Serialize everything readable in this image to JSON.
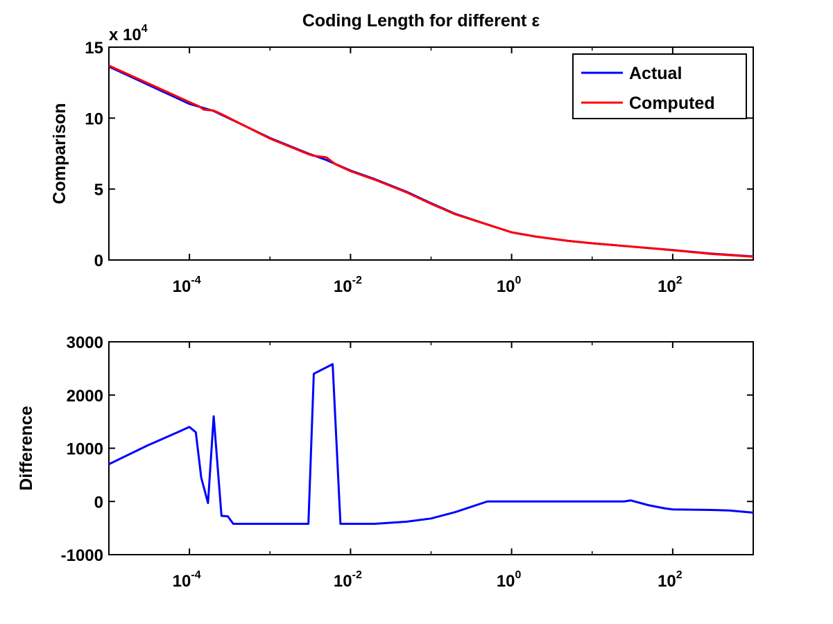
{
  "chart_data": [
    {
      "type": "line",
      "title": "Coding Length for different ε",
      "ylabel": "Comparison",
      "xlabel": "",
      "xscale": "log",
      "xlim": [
        1e-05,
        1000
      ],
      "ylim": [
        0,
        150000
      ],
      "y_multiplier_label": {
        "base": "x 10",
        "exp": "4"
      },
      "yticks": [
        {
          "value": 0,
          "label": "0"
        },
        {
          "value": 50000,
          "label": "5"
        },
        {
          "value": 100000,
          "label": "10"
        },
        {
          "value": 150000,
          "label": "15"
        }
      ],
      "xticks": [
        {
          "value": 0.0001,
          "base": "10",
          "exp": "-4"
        },
        {
          "value": 0.01,
          "base": "10",
          "exp": "-2"
        },
        {
          "value": 1,
          "base": "10",
          "exp": "0"
        },
        {
          "value": 100,
          "base": "10",
          "exp": "2"
        }
      ],
      "legend": {
        "position": "top-right"
      },
      "series": [
        {
          "name": "Actual",
          "color": "#0000ff",
          "points": [
            [
              1e-05,
              136300
            ],
            [
              0.0001,
              110000
            ],
            [
              0.0002,
              105000
            ],
            [
              0.001,
              86000
            ],
            [
              0.003,
              75000
            ],
            [
              0.005,
              70500
            ],
            [
              0.01,
              63000
            ],
            [
              0.02,
              57000
            ],
            [
              0.05,
              48000
            ],
            [
              0.1,
              40000
            ],
            [
              0.2,
              32500
            ],
            [
              0.5,
              25000
            ],
            [
              1,
              19500
            ],
            [
              2,
              16500
            ],
            [
              5,
              13500
            ],
            [
              10,
              11800
            ],
            [
              30,
              9500
            ],
            [
              100,
              7000
            ],
            [
              300,
              4500
            ],
            [
              1000,
              2500
            ]
          ]
        },
        {
          "name": "Computed",
          "color": "#ff0000",
          "points": [
            [
              1e-05,
              137000
            ],
            [
              0.0001,
              111300
            ],
            [
              0.00013,
              108500
            ],
            [
              0.00015,
              106000
            ],
            [
              0.0002,
              105300
            ],
            [
              0.00025,
              102800
            ],
            [
              0.001,
              85600
            ],
            [
              0.003,
              74600
            ],
            [
              0.0035,
              73400
            ],
            [
              0.005,
              72400
            ],
            [
              0.0065,
              67500
            ],
            [
              0.01,
              62600
            ],
            [
              0.02,
              56600
            ],
            [
              0.05,
              47600
            ],
            [
              0.1,
              39600
            ],
            [
              0.2,
              32200
            ],
            [
              0.5,
              25000
            ],
            [
              1,
              19500
            ],
            [
              2,
              16500
            ],
            [
              5,
              13500
            ],
            [
              10,
              11800
            ],
            [
              30,
              9500
            ],
            [
              100,
              6900
            ],
            [
              300,
              4300
            ],
            [
              1000,
              2300
            ]
          ]
        }
      ]
    },
    {
      "type": "line",
      "title": "",
      "ylabel": "Difference",
      "xlabel": "",
      "xscale": "log",
      "xlim": [
        1e-05,
        1000
      ],
      "ylim": [
        -1000,
        3000
      ],
      "yticks": [
        {
          "value": -1000,
          "label": "-1000"
        },
        {
          "value": 0,
          "label": "0"
        },
        {
          "value": 1000,
          "label": "1000"
        },
        {
          "value": 2000,
          "label": "2000"
        },
        {
          "value": 3000,
          "label": "3000"
        }
      ],
      "xticks": [
        {
          "value": 0.0001,
          "base": "10",
          "exp": "-4"
        },
        {
          "value": 0.01,
          "base": "10",
          "exp": "-2"
        },
        {
          "value": 1,
          "base": "10",
          "exp": "0"
        },
        {
          "value": 100,
          "base": "10",
          "exp": "2"
        }
      ],
      "series": [
        {
          "color": "#0000ff",
          "points": [
            [
              1e-05,
              700
            ],
            [
              3e-05,
              1050
            ],
            [
              6e-05,
              1250
            ],
            [
              0.0001,
              1400
            ],
            [
              0.00012,
              1300
            ],
            [
              0.00014,
              450
            ],
            [
              0.00017,
              -30
            ],
            [
              0.0002,
              1600
            ],
            [
              0.00025,
              -270
            ],
            [
              0.0003,
              -280
            ],
            [
              0.00035,
              -420
            ],
            [
              0.001,
              -420
            ],
            [
              0.002,
              -420
            ],
            [
              0.003,
              -420
            ],
            [
              0.0035,
              2400
            ],
            [
              0.006,
              2580
            ],
            [
              0.0075,
              -420
            ],
            [
              0.02,
              -420
            ],
            [
              0.05,
              -380
            ],
            [
              0.1,
              -320
            ],
            [
              0.2,
              -200
            ],
            [
              0.5,
              0
            ],
            [
              1,
              0
            ],
            [
              10,
              0
            ],
            [
              25,
              0
            ],
            [
              30,
              20
            ],
            [
              50,
              -70
            ],
            [
              80,
              -130
            ],
            [
              100,
              -150
            ],
            [
              300,
              -160
            ],
            [
              500,
              -170
            ],
            [
              1000,
              -210
            ]
          ]
        }
      ]
    }
  ]
}
